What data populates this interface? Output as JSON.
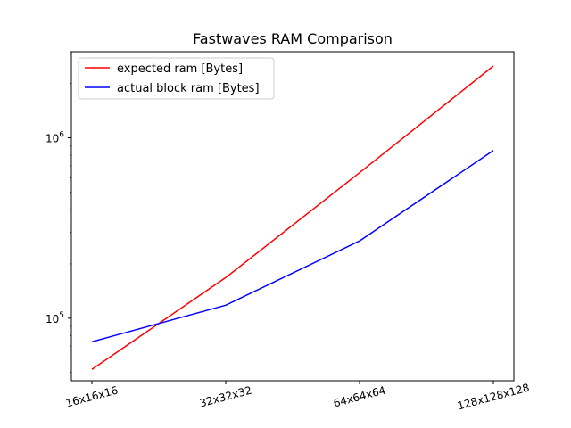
{
  "chart_data": {
    "type": "line",
    "title": "Fastwaves RAM Comparison",
    "xlabel": "",
    "ylabel": "",
    "categories": [
      "16x16x16",
      "32x32x32",
      "64x64x64",
      "128x128x128"
    ],
    "yscale": "log",
    "ylim": [
      45000,
      3000000
    ],
    "y_ticks": [
      {
        "value": 100000,
        "base": "10",
        "exp": "5"
      },
      {
        "value": 1000000,
        "base": "10",
        "exp": "6"
      }
    ],
    "series": [
      {
        "name": "expected ram [Bytes]",
        "color": "#ff0000",
        "values": [
          52000,
          168000,
          640000,
          2500000
        ]
      },
      {
        "name": "actual block ram [Bytes]",
        "color": "#0000ff",
        "values": [
          74000,
          118000,
          268000,
          850000
        ]
      }
    ],
    "legend_position": "top-left",
    "grid": false
  }
}
